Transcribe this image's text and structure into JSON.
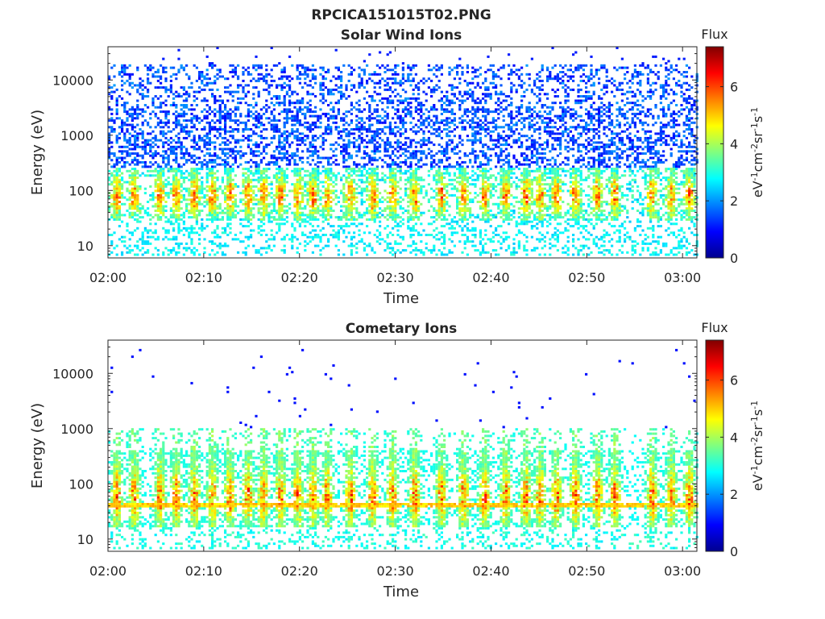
{
  "figure_title": "RPCICA151015T02.PNG",
  "panels": [
    {
      "title": "Solar Wind Ions",
      "xlabel": "Time",
      "ylabel": "Energy (eV)",
      "colorbar_label": "Flux"
    },
    {
      "title": "Cometary Ions",
      "xlabel": "Time",
      "ylabel": "Energy (eV)",
      "colorbar_label": "Flux"
    }
  ],
  "colorbar_unit": {
    "base1": "eV",
    "exp1": "-1",
    "base2": "cm",
    "exp2": "-2",
    "base3": "sr",
    "exp3": "-1",
    "base4": "s",
    "exp4": "-1"
  },
  "chart_data": [
    {
      "type": "heatmap",
      "title": "Solar Wind Ions",
      "xlabel": "Time",
      "ylabel": "Energy (eV)",
      "x_ticks": [
        "02:00",
        "02:10",
        "02:20",
        "02:30",
        "02:40",
        "02:50",
        "03:00"
      ],
      "x_tick_minutes": [
        0,
        10,
        20,
        30,
        40,
        50,
        60
      ],
      "xlim_minutes": [
        0,
        61.5
      ],
      "y_scale": "log",
      "y_ticks": [
        "10",
        "100",
        "1000",
        "10000"
      ],
      "y_tick_values": [
        10,
        100,
        1000,
        10000
      ],
      "ylim": [
        6,
        40000
      ],
      "colorbar": {
        "label": "Flux",
        "range": [
          0,
          7.4
        ],
        "ticks": [
          "0",
          "2",
          "4",
          "6"
        ],
        "tick_values": [
          0,
          2,
          4,
          6
        ],
        "colormap": "jet"
      },
      "pulse_centers_minutes": [
        0.8,
        2.6,
        5.3,
        7.0,
        8.9,
        10.8,
        12.6,
        14.5,
        16.1,
        17.9,
        19.7,
        21.3,
        22.8,
        25.2,
        27.5,
        29.6,
        31.9,
        34.7,
        37.0,
        39.2,
        41.4,
        43.5,
        45.0,
        46.7,
        48.7,
        51.0,
        52.8,
        56.7,
        58.7,
        60.6
      ],
      "peak_energy_eV": 60,
      "peak_flux": 6.2,
      "notes": "Sparse ~1-3 counts from 300 to 20000 eV; bursts 30-300 eV"
    },
    {
      "type": "heatmap",
      "title": "Cometary Ions",
      "xlabel": "Time",
      "ylabel": "Energy (eV)",
      "x_ticks": [
        "02:00",
        "02:10",
        "02:20",
        "02:30",
        "02:40",
        "02:50",
        "03:00"
      ],
      "x_tick_minutes": [
        0,
        10,
        20,
        30,
        40,
        50,
        60
      ],
      "xlim_minutes": [
        0,
        61.5
      ],
      "y_scale": "log",
      "y_ticks": [
        "10",
        "100",
        "1000",
        "10000"
      ],
      "y_tick_values": [
        10,
        100,
        1000,
        10000
      ],
      "ylim": [
        6,
        40000
      ],
      "colorbar": {
        "label": "Flux",
        "range": [
          0,
          7.4
        ],
        "ticks": [
          "0",
          "2",
          "4",
          "6"
        ],
        "tick_values": [
          0,
          2,
          4,
          6
        ],
        "colormap": "jet"
      },
      "pulse_centers_minutes": [
        0.8,
        2.6,
        5.3,
        7.0,
        8.9,
        10.8,
        12.6,
        14.5,
        16.1,
        17.9,
        19.7,
        21.3,
        22.8,
        25.2,
        27.5,
        29.6,
        31.9,
        34.7,
        37.0,
        39.2,
        41.4,
        43.5,
        45.0,
        46.7,
        48.7,
        51.0,
        52.8,
        56.7,
        58.7,
        60.6
      ],
      "peak_energy_eV": 55,
      "peak_flux": 7.0,
      "line_energy_eV": 42,
      "notes": "Intense bursts 20-600 eV peaking near 40-80 eV"
    }
  ]
}
